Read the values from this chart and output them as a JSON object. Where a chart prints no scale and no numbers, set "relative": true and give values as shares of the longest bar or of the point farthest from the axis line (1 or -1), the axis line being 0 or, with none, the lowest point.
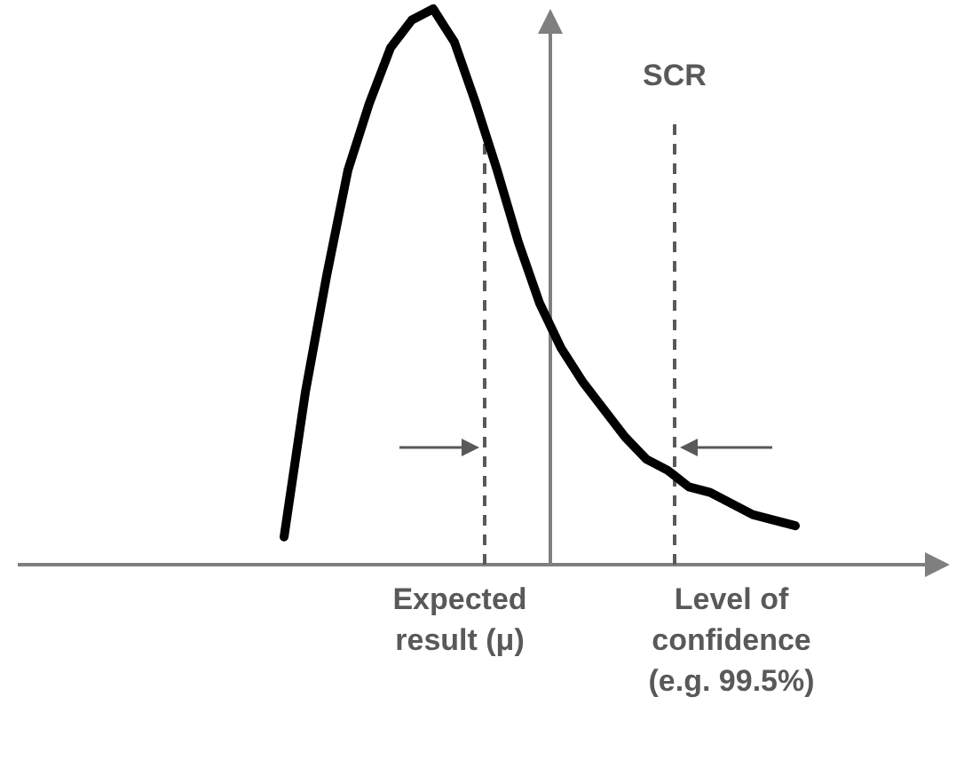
{
  "chart_data": {
    "type": "line",
    "relative": true,
    "categories": [
      null,
      null,
      null,
      null,
      null,
      null,
      null,
      null,
      null,
      null,
      null,
      null,
      null,
      null,
      null,
      null,
      null,
      null,
      null,
      null,
      null,
      null,
      null,
      null,
      null
    ],
    "series": [
      {
        "color": "#000000",
        "values": [
          0.05,
          0.31,
          0.52,
          0.71,
          0.83,
          0.93,
          0.98,
          1,
          0.94,
          0.83,
          0.71,
          0.58,
          0.47,
          0.39,
          0.33,
          0.28,
          0.23,
          0.19,
          0.17,
          0.14,
          0.13,
          0.11,
          0.09,
          0.08,
          0.07
        ]
      }
    ],
    "grid": false,
    "legend": false,
    "marker": "none",
    "line_style": "solid",
    "annotations": [
      "SCR",
      "Expected result (μ)",
      "Level of confidence (e.g. 99.5%)"
    ]
  }
}
